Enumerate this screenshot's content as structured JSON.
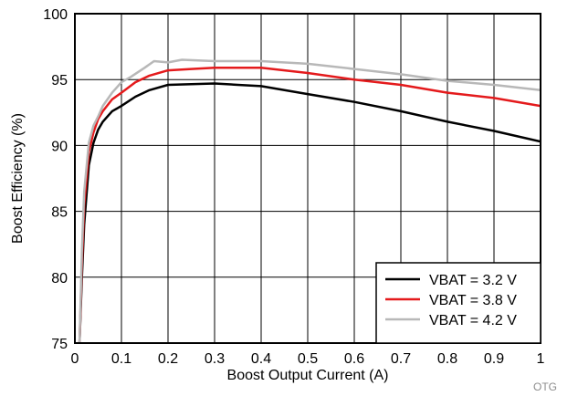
{
  "chart_data": {
    "type": "line",
    "xlabel": "Boost Output Current (A)",
    "ylabel": "Boost Efficiency (%)",
    "xlim": [
      0,
      1
    ],
    "ylim": [
      75,
      100
    ],
    "xticks": [
      0,
      0.1,
      0.2,
      0.3,
      0.4,
      0.5,
      0.6,
      0.7,
      0.8,
      0.9,
      1
    ],
    "xtick_labels": [
      "0",
      "0.1",
      "0.2",
      "0.3",
      "0.4",
      "0.5",
      "0.6",
      "0.7",
      "0.8",
      "0.9",
      "1"
    ],
    "yticks": [
      75,
      80,
      85,
      90,
      95,
      100
    ],
    "ytick_labels": [
      "75",
      "80",
      "85",
      "90",
      "95",
      "100"
    ],
    "grid": true,
    "legend_position": "bottom-right",
    "series": [
      {
        "name": "VBAT = 3.2 V",
        "color": "#000000",
        "x": [
          0.01,
          0.015,
          0.02,
          0.03,
          0.04,
          0.05,
          0.06,
          0.08,
          0.1,
          0.13,
          0.16,
          0.2,
          0.25,
          0.3,
          0.35,
          0.4,
          0.5,
          0.6,
          0.7,
          0.8,
          0.9,
          1.0
        ],
        "y": [
          75,
          80,
          84,
          88.5,
          90.2,
          91.2,
          91.8,
          92.6,
          93.0,
          93.7,
          94.2,
          94.6,
          94.65,
          94.7,
          94.6,
          94.5,
          93.9,
          93.3,
          92.6,
          91.8,
          91.1,
          90.3
        ]
      },
      {
        "name": "VBAT = 3.8 V",
        "color": "#e41a1c",
        "x": [
          0.01,
          0.015,
          0.02,
          0.03,
          0.04,
          0.05,
          0.06,
          0.08,
          0.1,
          0.13,
          0.16,
          0.2,
          0.25,
          0.3,
          0.35,
          0.4,
          0.5,
          0.6,
          0.7,
          0.8,
          0.9,
          1.0
        ],
        "y": [
          75,
          81,
          85.5,
          89.5,
          91.0,
          92.0,
          92.6,
          93.5,
          94.0,
          94.8,
          95.3,
          95.7,
          95.8,
          95.9,
          95.9,
          95.9,
          95.5,
          95.0,
          94.6,
          94.0,
          93.6,
          93.0
        ]
      },
      {
        "name": "VBAT = 4.2 V",
        "color": "#b8b8b8",
        "x": [
          0.01,
          0.015,
          0.02,
          0.03,
          0.04,
          0.05,
          0.06,
          0.08,
          0.1,
          0.12,
          0.15,
          0.17,
          0.2,
          0.23,
          0.3,
          0.4,
          0.5,
          0.6,
          0.7,
          0.8,
          0.9,
          1.0
        ],
        "y": [
          75,
          82,
          86.5,
          90.2,
          91.5,
          92.2,
          93.0,
          94.0,
          94.8,
          95.2,
          95.9,
          96.4,
          96.3,
          96.5,
          96.4,
          96.4,
          96.2,
          95.8,
          95.4,
          94.9,
          94.6,
          94.2
        ]
      }
    ]
  },
  "footnote": "OTG"
}
